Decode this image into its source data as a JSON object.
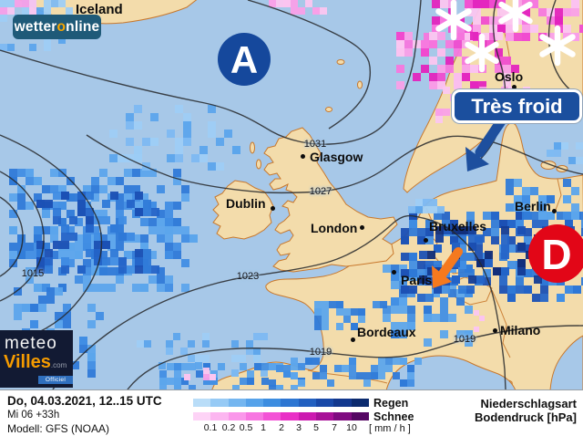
{
  "branding": {
    "wetteronline": {
      "part1": "wetter",
      "accent": "o",
      "part2": "nline"
    },
    "meteovilles": {
      "top": "meteo",
      "bottom": "Villes",
      "tld": ".com",
      "badge": "Officiel"
    }
  },
  "map": {
    "country_label": "Iceland",
    "pressure_high": "A",
    "pressure_low": "D",
    "cold_callout": "Très froid",
    "cities": {
      "oslo": "Oslo",
      "glasgow": "Glasgow",
      "dublin": "Dublin",
      "london": "London",
      "bruxelles": "Bruxelles",
      "paris": "Paris",
      "berlin": "Berlin",
      "bordeaux": "Bordeaux",
      "milano": "Milano"
    },
    "isobar_labels": {
      "l1031": "1031",
      "l1027": "1027",
      "l1023": "1023",
      "l1015": "1015",
      "l1019a": "1019",
      "l1019b": "1019"
    },
    "colors": {
      "high": "#15489c",
      "low": "#e20617",
      "callout_bg": "#1b4f9e",
      "arrow_orange": "#f5791e",
      "arrow_blue": "#1d4f9e"
    }
  },
  "info_bar": {
    "datetime": "Do, 04.03.2021, 12..15 UTC",
    "run": "Mi 06 +33h",
    "model": "Modell: GFS (NOAA)",
    "legend": {
      "rain_label": "Regen",
      "snow_label": "Schnee",
      "unit": "[ mm / h ]",
      "ticks": [
        "0.1",
        "0.2",
        "0.5",
        "1",
        "2",
        "3",
        "5",
        "7",
        "10"
      ],
      "rain_colors": [
        "#b9ddf8",
        "#96caf5",
        "#74b6f0",
        "#55a2ea",
        "#3c8de0",
        "#2d76d2",
        "#2260c0",
        "#1849a8",
        "#12388e",
        "#0b2a6e"
      ],
      "snow_colors": [
        "#fdd3f6",
        "#fcb6f0",
        "#fa97ea",
        "#f776e1",
        "#f352d6",
        "#e92fc6",
        "#cc1ab0",
        "#a81198",
        "#7f0b80",
        "#550763"
      ]
    },
    "type_label": "Niederschlagsart",
    "pressure_label": "Bodendruck [hPa]"
  }
}
